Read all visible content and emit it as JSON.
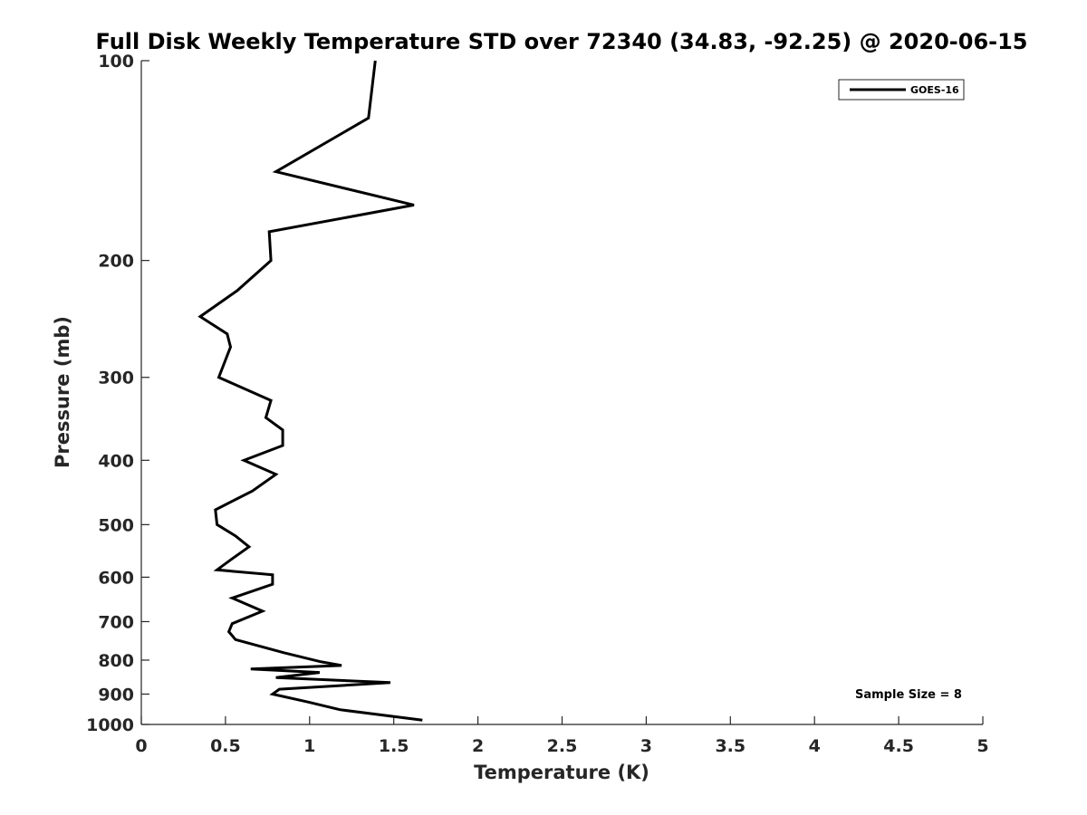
{
  "chart_data": {
    "type": "line",
    "title": "Full Disk Weekly Temperature STD over 72340 (34.83, -92.25) @ 2020-06-15",
    "xlabel": "Temperature (K)",
    "ylabel": "Pressure (mb)",
    "xlim": [
      0,
      5
    ],
    "ylim": [
      100,
      1000
    ],
    "y_scale": "log",
    "y_direction": "reversed",
    "grid": false,
    "x_ticks": [
      "0",
      "0.5",
      "1",
      "1.5",
      "2",
      "2.5",
      "3",
      "3.5",
      "4",
      "4.5",
      "5"
    ],
    "y_ticks": [
      "100",
      "200",
      "300",
      "400",
      "500",
      "600",
      "700",
      "800",
      "900",
      "1000"
    ],
    "legend": {
      "location": "top-right",
      "entries": [
        "GOES-16"
      ]
    },
    "annotation": "Sample Size = 8",
    "series": [
      {
        "name": "GOES-16",
        "color": "#000000",
        "points": [
          [
            1.39,
            100
          ],
          [
            1.35,
            122
          ],
          [
            0.8,
            147
          ],
          [
            1.62,
            165
          ],
          [
            0.76,
            181
          ],
          [
            0.77,
            200
          ],
          [
            0.57,
            222
          ],
          [
            0.35,
            243
          ],
          [
            0.51,
            258
          ],
          [
            0.53,
            270
          ],
          [
            0.46,
            300
          ],
          [
            0.77,
            325
          ],
          [
            0.74,
            345
          ],
          [
            0.84,
            360
          ],
          [
            0.84,
            380
          ],
          [
            0.61,
            400
          ],
          [
            0.8,
            420
          ],
          [
            0.66,
            445
          ],
          [
            0.44,
            475
          ],
          [
            0.45,
            500
          ],
          [
            0.56,
            520
          ],
          [
            0.64,
            540
          ],
          [
            0.53,
            565
          ],
          [
            0.45,
            585
          ],
          [
            0.78,
            595
          ],
          [
            0.78,
            615
          ],
          [
            0.54,
            645
          ],
          [
            0.72,
            675
          ],
          [
            0.54,
            705
          ],
          [
            0.52,
            725
          ],
          [
            0.56,
            745
          ],
          [
            0.85,
            780
          ],
          [
            1.07,
            805
          ],
          [
            1.19,
            815
          ],
          [
            0.65,
            825
          ],
          [
            1.06,
            835
          ],
          [
            0.8,
            850
          ],
          [
            1.48,
            865
          ],
          [
            0.82,
            885
          ],
          [
            0.78,
            900
          ],
          [
            0.99,
            925
          ],
          [
            1.18,
            950
          ],
          [
            1.67,
            985
          ]
        ]
      }
    ]
  }
}
